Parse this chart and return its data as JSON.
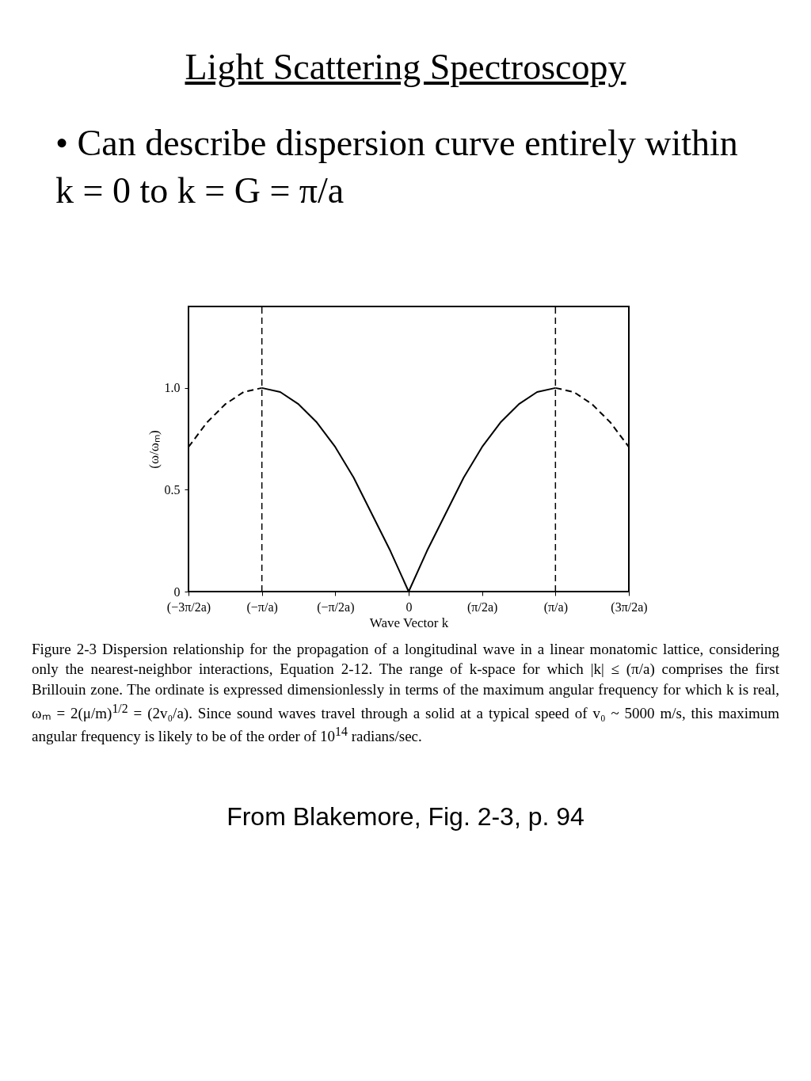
{
  "chart_data": {
    "type": "line",
    "title": "Light Scattering Spectroscopy",
    "subtitle": "• Can describe dispersion curve entirely within k = 0 to k = G = π/a",
    "xlabel": "Wave Vector   k",
    "ylabel": "(ω/ωₘ)",
    "categories": [
      "(−3π/2a)",
      null,
      null,
      null,
      "(−π/a)",
      null,
      null,
      null,
      "(−π/2a)",
      null,
      null,
      null,
      "0",
      null,
      null,
      null,
      "(π/2a)",
      null,
      null,
      null,
      "(π/a)",
      null,
      null,
      null,
      "(3π/2a)"
    ],
    "series": [
      {
        "color": "#000000",
        "line_style": "dashed",
        "values": [
          0.71,
          0.83,
          0.92,
          0.98,
          1.0,
          null,
          null,
          null,
          null,
          null,
          null,
          null,
          null,
          null,
          null,
          null,
          null,
          null,
          null,
          null,
          null,
          null,
          null,
          null,
          null
        ]
      },
      {
        "color": "#000000",
        "line_style": "solid",
        "values": [
          null,
          null,
          null,
          null,
          1.0,
          0.98,
          0.92,
          0.83,
          0.71,
          0.56,
          0.38,
          0.2,
          0,
          0.2,
          0.38,
          0.56,
          0.71,
          0.83,
          0.92,
          0.98,
          1.0,
          null,
          null,
          null,
          null
        ]
      },
      {
        "color": "#000000",
        "line_style": "dashed",
        "values": [
          null,
          null,
          null,
          null,
          null,
          null,
          null,
          null,
          null,
          null,
          null,
          null,
          null,
          null,
          null,
          null,
          null,
          null,
          null,
          null,
          1.0,
          0.98,
          0.92,
          0.83,
          0.71
        ]
      }
    ],
    "ylim": [
      0,
      1.4
    ],
    "yticks": [
      0,
      0.5,
      {
        "value": 1,
        "label": "1.0"
      }
    ],
    "ref_lines": [
      {
        "axis": "x",
        "value": "(−π/a)",
        "line_style": "dashed"
      },
      {
        "axis": "x",
        "value": "(π/a)",
        "line_style": "dashed"
      }
    ],
    "annotations": [
      "Figure 2-3 Dispersion relationship for the propagation of a longitudinal wave in a linear monatomic lattice, considering only the nearest-neighbor interactions, Equation 2-12. The range of k-space for which |k| ≤ (π/a) comprises the first Brillouin zone. The ordinate is expressed dimensionlessly in terms of the maximum angular frequency for which k is real, ωₘ = 2(μ/m)$^{1/2}$ = (2v₀/a). Since sound waves travel through a solid at a typical speed of v₀ ~ 5000 m/s, this maximum angular frequency is likely to be of the order of 10$^{14}$ radians/sec.",
      "From Blakemore, Fig. 2-3, p. 94"
    ]
  }
}
